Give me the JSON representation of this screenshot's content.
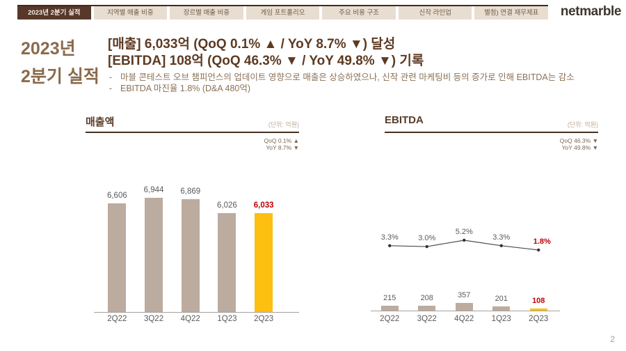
{
  "nav": {
    "tabs": [
      {
        "label": "2023년 2분기 실적",
        "active": true
      },
      {
        "label": "지역별 매출 비중",
        "active": false
      },
      {
        "label": "장르별 매출 비중",
        "active": false
      },
      {
        "label": "게임 포트폴리오",
        "active": false
      },
      {
        "label": "주요 비용 구조",
        "active": false
      },
      {
        "label": "신작 라인업",
        "active": false
      },
      {
        "label": "별첨) 연결 재무제표",
        "active": false
      }
    ],
    "logo": "netmarble"
  },
  "header": {
    "title_line1": "2023년",
    "title_line2": "2분기 실적",
    "metric_line1": "[매출] 6,033억 (QoQ 0.1% ▲ / YoY 8.7% ▼) 달성",
    "metric_line2": "[EBITDA] 108억 (QoQ 46.3% ▼ / YoY 49.8% ▼) 기록",
    "bullet_dash": "-",
    "bullets": [
      "마블 콘테스트 오브 챔피언스의 업데이트 영향으로 매출은 상승하였으나, 신작 관련 마케팅비 등의 증가로 인해 EBITDA는 감소",
      "EBITDA 마진율 1.8% (D&A 480억)"
    ]
  },
  "chart_data": [
    {
      "type": "bar",
      "title": "매출액",
      "unit_label": "(단위: 억원)",
      "qoq_label": "QoQ 0.1% ▲",
      "yoy_label": "YoY 8.7% ▼",
      "categories": [
        "2Q22",
        "3Q22",
        "4Q22",
        "1Q23",
        "2Q23"
      ],
      "values": [
        6606,
        6944,
        6869,
        6026,
        6033
      ],
      "value_labels": [
        "6,606",
        "6,944",
        "6,869",
        "6,026",
        "6,033"
      ],
      "highlight_index": 4,
      "ylim": [
        0,
        7000
      ],
      "bar_color": "#bcab9f",
      "highlight_bar_color": "#fdbf10",
      "value_label_color": "#595959",
      "highlight_value_label_color": "#c00000"
    },
    {
      "type": "bar+line",
      "title": "EBITDA",
      "unit_label": "(단위: 억원)",
      "qoq_label": "QoQ 46.3% ▼",
      "yoy_label": "YoY 49.8% ▼",
      "categories": [
        "2Q22",
        "3Q22",
        "4Q22",
        "1Q23",
        "2Q23"
      ],
      "series": [
        {
          "name": "EBITDA",
          "type": "bar",
          "values": [
            215,
            208,
            357,
            201,
            108
          ],
          "value_labels": [
            "215",
            "208",
            "357",
            "201",
            "108"
          ]
        },
        {
          "name": "EBITDA margin",
          "type": "line",
          "values_pct": [
            3.3,
            3.0,
            5.2,
            3.3,
            1.8
          ],
          "value_labels": [
            "3.3%",
            "3.0%",
            "5.2%",
            "3.3%",
            "1.8%"
          ]
        }
      ],
      "highlight_index": 4,
      "ylim": [
        0,
        400
      ],
      "bar_color": "#bcab9f",
      "highlight_bar_color": "#fdbf10",
      "line_color": "#4a4a4a",
      "marker_color": "#333333",
      "value_label_color": "#595959",
      "highlight_value_label_color": "#c00000"
    }
  ],
  "page_number": "2"
}
